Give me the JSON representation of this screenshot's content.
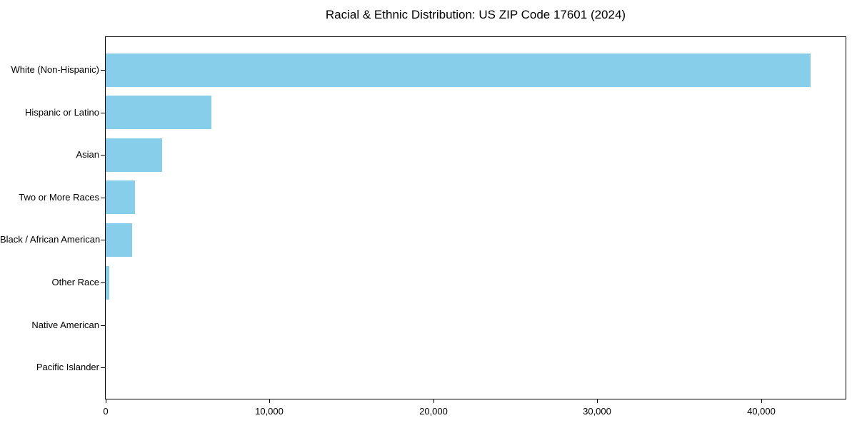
{
  "chart_data": {
    "type": "bar",
    "orientation": "horizontal",
    "title": "Racial & Ethnic Distribution: US ZIP Code 17601 (2024)",
    "categories": [
      "White (Non-Hispanic)",
      "Hispanic or Latino",
      "Asian",
      "Two or More Races",
      "Black / African American",
      "Other Race",
      "Native American",
      "Pacific Islander"
    ],
    "values": [
      43000,
      6450,
      3430,
      1790,
      1610,
      220,
      0,
      0
    ],
    "xlabel": "",
    "ylabel": "",
    "xlim": [
      0,
      45150
    ],
    "xticks": [
      0,
      10000,
      20000,
      30000,
      40000
    ],
    "xtick_labels": [
      "0",
      "10,000",
      "20,000",
      "30,000",
      "40,000"
    ],
    "bar_color": "#87CEEB",
    "axis_color": "#000000",
    "text_color": "#000000",
    "background": "#FFFFFF",
    "grid": false,
    "legend": null
  }
}
